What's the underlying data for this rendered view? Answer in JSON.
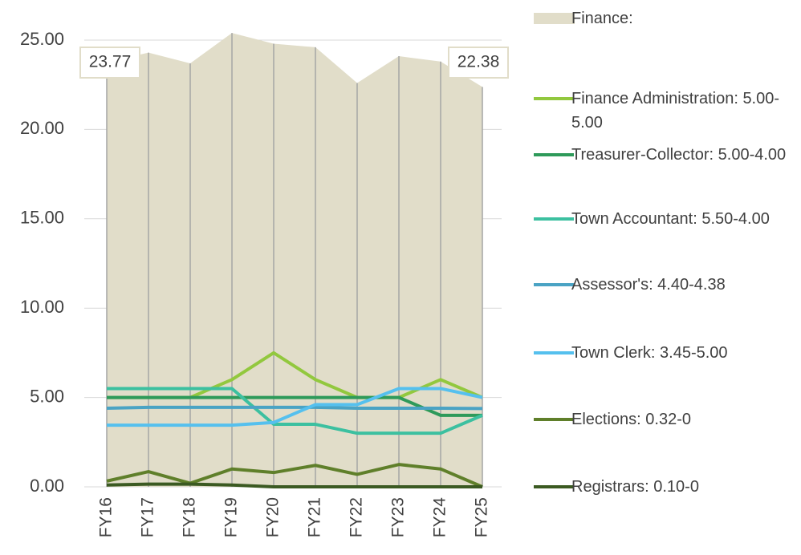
{
  "chart_data": {
    "type": "line",
    "categories": [
      "FY16",
      "FY17",
      "FY18",
      "FY19",
      "FY20",
      "FY21",
      "FY22",
      "FY23",
      "FY24",
      "FY25"
    ],
    "ylim": [
      0,
      25
    ],
    "yticks": [
      {
        "value": 0,
        "label": "0.00"
      },
      {
        "value": 5,
        "label": "5.00"
      },
      {
        "value": 10,
        "label": "10.00"
      },
      {
        "value": 15,
        "label": "15.00"
      },
      {
        "value": 20,
        "label": "20.00"
      },
      {
        "value": 25,
        "label": "25.00"
      }
    ],
    "grid": true,
    "legend": "right",
    "area": {
      "name": "Finance:",
      "color": "#e1ddc9",
      "values": [
        23.77,
        24.3,
        23.7,
        25.4,
        24.8,
        24.6,
        22.6,
        24.1,
        23.8,
        22.38
      ]
    },
    "series": [
      {
        "name": "Finance Administration: 5.00-5.00",
        "color": "#92c83e",
        "values": [
          5,
          5,
          5,
          6,
          7.5,
          6,
          5,
          5,
          6,
          5
        ]
      },
      {
        "name": "Treasurer-Collector: 5.00-4.00",
        "color": "#2e9a5a",
        "values": [
          5,
          5,
          5,
          5,
          5,
          5,
          5,
          5,
          4,
          4
        ]
      },
      {
        "name": "Town Accountant: 5.50-4.00",
        "color": "#3cc0a0",
        "values": [
          5.5,
          5.5,
          5.5,
          5.5,
          3.5,
          3.5,
          3,
          3,
          3,
          4
        ]
      },
      {
        "name": "Assessor's: 4.40-4.38",
        "color": "#4aa3c4",
        "values": [
          4.4,
          4.45,
          4.45,
          4.45,
          4.45,
          4.45,
          4.4,
          4.4,
          4.4,
          4.38
        ]
      },
      {
        "name": "Town Clerk: 3.45-5.00",
        "color": "#55c0ee",
        "values": [
          3.45,
          3.45,
          3.45,
          3.45,
          3.6,
          4.6,
          4.6,
          5.5,
          5.5,
          5
        ]
      },
      {
        "name": "Elections: 0.32-0",
        "color": "#5f7f2a",
        "values": [
          0.32,
          0.85,
          0.2,
          1.0,
          0.8,
          1.2,
          0.7,
          1.25,
          1.0,
          0
        ]
      },
      {
        "name": "Registrars: 0.10-0",
        "color": "#3b5a22",
        "values": [
          0.1,
          0.15,
          0.15,
          0.1,
          0,
          0,
          0,
          0,
          0,
          0
        ]
      }
    ]
  }
}
